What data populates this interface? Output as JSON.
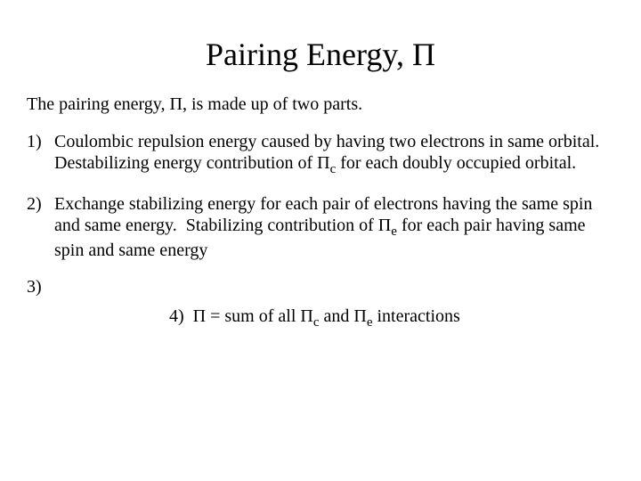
{
  "title": "Pairing Energy, Π",
  "intro": "The pairing energy, Π, is made up of two parts.",
  "items": [
    {
      "num": "1)",
      "text": "Coulombic repulsion energy caused by having two electrons in same orbital.  Destabilizing energy contribution of Πc for each doubly occupied orbital."
    },
    {
      "num": "2)",
      "text": "Exchange stabilizing energy for each pair of electrons having the same spin and same energy.  Stabilizing contribution of Πe for each pair having same spin and same energy"
    }
  ],
  "item3": "3)",
  "item4_num": "4)",
  "item4_text": "Π = sum of all Πc and Πe interactions"
}
